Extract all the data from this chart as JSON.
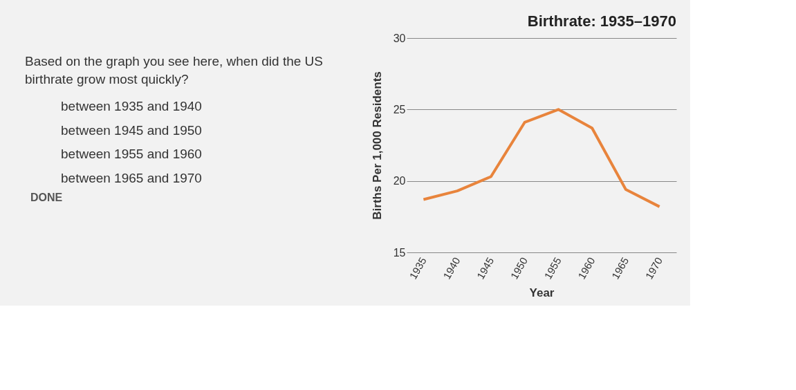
{
  "chart_data": {
    "type": "line",
    "title": "Birthrate: 1935–1970",
    "xlabel": "Year",
    "ylabel": "Births Per 1,000 Residents",
    "categories": [
      "1935",
      "1940",
      "1945",
      "1950",
      "1955",
      "1960",
      "1965",
      "1970"
    ],
    "series": [
      {
        "color": "#e8843c",
        "values": [
          18.7,
          19.3,
          20.3,
          24.1,
          25.0,
          23.7,
          19.4,
          18.2
        ]
      }
    ],
    "ylim": [
      15,
      30
    ],
    "yticks": [
      15,
      20,
      25,
      30
    ],
    "grid": "y",
    "marker": "none",
    "line_style": "solid",
    "legend": false,
    "annotations": [
      "Based on the graph you see here, when did the US birthrate grow most quickly?",
      "between 1935 and 1940",
      "between 1945 and 1950",
      "between 1955 and 1960",
      "between 1965 and 1970",
      "DONE"
    ]
  }
}
